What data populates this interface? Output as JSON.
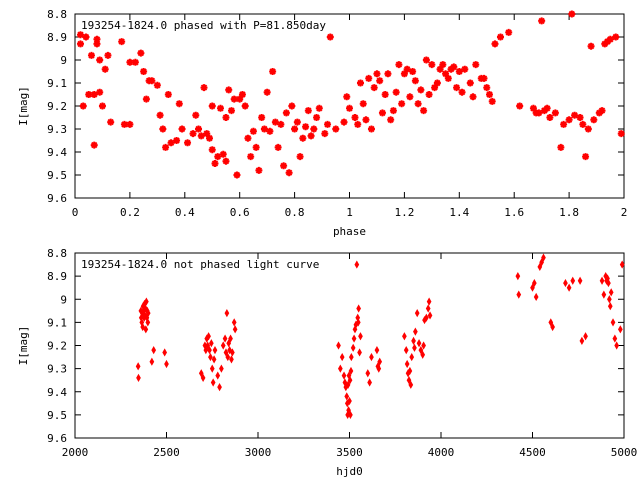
{
  "chart_data": [
    {
      "type": "scatter",
      "title": "193254-1824.0 phased with P=81.850day",
      "xlabel": "phase",
      "ylabel": "I[mag]",
      "xlim": [
        0,
        2
      ],
      "ylim": [
        8.8,
        9.6
      ],
      "y_inverted": true,
      "x_ticks": [
        "0",
        "0.2",
        "0.4",
        "0.6",
        "0.8",
        "1",
        "1.2",
        "1.4",
        "1.6",
        "1.8",
        "2"
      ],
      "y_ticks": [
        "8.8",
        "8.9",
        "9",
        "9.1",
        "9.2",
        "9.3",
        "9.4",
        "9.5",
        "9.6"
      ],
      "marker_color": "#ff0000",
      "grid": false,
      "points": [
        [
          0.02,
          8.89
        ],
        [
          0.02,
          8.93
        ],
        [
          0.03,
          9.2
        ],
        [
          0.04,
          8.9
        ],
        [
          0.05,
          9.15
        ],
        [
          0.06,
          8.98
        ],
        [
          0.07,
          9.15
        ],
        [
          0.07,
          9.37
        ],
        [
          0.08,
          8.93
        ],
        [
          0.08,
          8.91
        ],
        [
          0.09,
          9.0
        ],
        [
          0.09,
          9.14
        ],
        [
          0.1,
          9.2
        ],
        [
          0.11,
          9.04
        ],
        [
          0.12,
          8.98
        ],
        [
          0.13,
          9.27
        ],
        [
          0.17,
          8.92
        ],
        [
          0.18,
          9.28
        ],
        [
          0.2,
          9.28
        ],
        [
          0.2,
          9.01
        ],
        [
          0.22,
          9.01
        ],
        [
          0.24,
          8.97
        ],
        [
          0.25,
          9.05
        ],
        [
          0.26,
          9.17
        ],
        [
          0.27,
          9.09
        ],
        [
          0.28,
          9.09
        ],
        [
          0.3,
          9.11
        ],
        [
          0.31,
          9.24
        ],
        [
          0.32,
          9.3
        ],
        [
          0.33,
          9.38
        ],
        [
          0.34,
          9.15
        ],
        [
          0.35,
          9.36
        ],
        [
          0.37,
          9.35
        ],
        [
          0.38,
          9.19
        ],
        [
          0.39,
          9.3
        ],
        [
          0.41,
          9.36
        ],
        [
          0.43,
          9.32
        ],
        [
          0.44,
          9.24
        ],
        [
          0.45,
          9.3
        ],
        [
          0.46,
          9.33
        ],
        [
          0.47,
          9.12
        ],
        [
          0.48,
          9.32
        ],
        [
          0.49,
          9.34
        ],
        [
          0.5,
          9.39
        ],
        [
          0.5,
          9.2
        ],
        [
          0.51,
          9.45
        ],
        [
          0.52,
          9.42
        ],
        [
          0.53,
          9.21
        ],
        [
          0.54,
          9.41
        ],
        [
          0.55,
          9.44
        ],
        [
          0.55,
          9.25
        ],
        [
          0.56,
          9.13
        ],
        [
          0.57,
          9.22
        ],
        [
          0.58,
          9.17
        ],
        [
          0.59,
          9.5
        ],
        [
          0.6,
          9.17
        ],
        [
          0.61,
          9.15
        ],
        [
          0.62,
          9.2
        ],
        [
          0.63,
          9.34
        ],
        [
          0.64,
          9.42
        ],
        [
          0.65,
          9.31
        ],
        [
          0.66,
          9.38
        ],
        [
          0.67,
          9.48
        ],
        [
          0.68,
          9.25
        ],
        [
          0.69,
          9.3
        ],
        [
          0.7,
          9.14
        ],
        [
          0.71,
          9.31
        ],
        [
          0.72,
          9.05
        ],
        [
          0.73,
          9.27
        ],
        [
          0.74,
          9.38
        ],
        [
          0.75,
          9.28
        ],
        [
          0.76,
          9.46
        ],
        [
          0.77,
          9.23
        ],
        [
          0.78,
          9.49
        ],
        [
          0.79,
          9.2
        ],
        [
          0.8,
          9.3
        ],
        [
          0.81,
          9.27
        ],
        [
          0.82,
          9.42
        ],
        [
          0.83,
          9.34
        ],
        [
          0.84,
          9.29
        ],
        [
          0.85,
          9.22
        ],
        [
          0.86,
          9.33
        ],
        [
          0.87,
          9.3
        ],
        [
          0.88,
          9.25
        ],
        [
          0.89,
          9.21
        ],
        [
          0.91,
          9.32
        ],
        [
          0.92,
          9.28
        ],
        [
          0.93,
          8.9
        ],
        [
          0.95,
          9.3
        ],
        [
          0.98,
          9.27
        ],
        [
          0.99,
          9.16
        ],
        [
          1.0,
          9.21
        ],
        [
          1.02,
          9.25
        ],
        [
          1.03,
          9.28
        ],
        [
          1.04,
          9.1
        ],
        [
          1.05,
          9.19
        ],
        [
          1.06,
          9.26
        ],
        [
          1.07,
          9.08
        ],
        [
          1.08,
          9.3
        ],
        [
          1.09,
          9.12
        ],
        [
          1.1,
          9.06
        ],
        [
          1.11,
          9.09
        ],
        [
          1.12,
          9.23
        ],
        [
          1.13,
          9.15
        ],
        [
          1.14,
          9.06
        ],
        [
          1.15,
          9.26
        ],
        [
          1.16,
          9.22
        ],
        [
          1.17,
          9.14
        ],
        [
          1.18,
          9.02
        ],
        [
          1.19,
          9.19
        ],
        [
          1.2,
          9.06
        ],
        [
          1.21,
          9.04
        ],
        [
          1.22,
          9.16
        ],
        [
          1.23,
          9.05
        ],
        [
          1.24,
          9.09
        ],
        [
          1.25,
          9.19
        ],
        [
          1.26,
          9.13
        ],
        [
          1.27,
          9.22
        ],
        [
          1.28,
          9.0
        ],
        [
          1.29,
          9.15
        ],
        [
          1.3,
          9.02
        ],
        [
          1.31,
          9.12
        ],
        [
          1.32,
          9.1
        ],
        [
          1.33,
          9.04
        ],
        [
          1.34,
          9.02
        ],
        [
          1.35,
          9.06
        ],
        [
          1.36,
          9.08
        ],
        [
          1.37,
          9.04
        ],
        [
          1.38,
          9.03
        ],
        [
          1.39,
          9.12
        ],
        [
          1.4,
          9.05
        ],
        [
          1.41,
          9.14
        ],
        [
          1.42,
          9.04
        ],
        [
          1.44,
          9.1
        ],
        [
          1.45,
          9.16
        ],
        [
          1.46,
          9.02
        ],
        [
          1.48,
          9.08
        ],
        [
          1.49,
          9.08
        ],
        [
          1.5,
          9.12
        ],
        [
          1.51,
          9.15
        ],
        [
          1.52,
          9.18
        ],
        [
          1.53,
          8.93
        ],
        [
          1.55,
          8.9
        ],
        [
          1.58,
          8.88
        ],
        [
          1.62,
          9.2
        ],
        [
          1.67,
          9.21
        ],
        [
          1.68,
          9.23
        ],
        [
          1.69,
          9.23
        ],
        [
          1.7,
          8.83
        ],
        [
          1.71,
          9.22
        ],
        [
          1.72,
          9.21
        ],
        [
          1.73,
          9.25
        ],
        [
          1.75,
          9.23
        ],
        [
          1.77,
          9.38
        ],
        [
          1.78,
          9.28
        ],
        [
          1.8,
          9.26
        ],
        [
          1.81,
          8.8
        ],
        [
          1.82,
          9.24
        ],
        [
          1.84,
          9.25
        ],
        [
          1.85,
          9.28
        ],
        [
          1.86,
          9.42
        ],
        [
          1.87,
          9.3
        ],
        [
          1.88,
          8.94
        ],
        [
          1.89,
          9.26
        ],
        [
          1.91,
          9.23
        ],
        [
          1.92,
          9.22
        ],
        [
          1.93,
          8.93
        ],
        [
          1.94,
          8.92
        ],
        [
          1.95,
          8.91
        ],
        [
          1.97,
          8.9
        ],
        [
          1.99,
          9.32
        ]
      ]
    },
    {
      "type": "scatter",
      "title": "193254-1824.0 not phased light curve",
      "xlabel": "hjd0",
      "ylabel": "I[mag]",
      "xlim": [
        2000,
        5000
      ],
      "ylim": [
        8.8,
        9.6
      ],
      "y_inverted": true,
      "x_ticks": [
        "2000",
        "2500",
        "3000",
        "3500",
        "4000",
        "4500",
        "5000"
      ],
      "y_ticks": [
        "8.8",
        "8.9",
        "9",
        "9.1",
        "9.2",
        "9.3",
        "9.4",
        "9.5",
        "9.6"
      ],
      "marker_color": "#ff0000",
      "grid": false,
      "points": [
        [
          2345,
          9.29
        ],
        [
          2347,
          9.34
        ],
        [
          2360,
          9.05
        ],
        [
          2362,
          9.08
        ],
        [
          2365,
          9.1
        ],
        [
          2368,
          9.06
        ],
        [
          2370,
          9.12
        ],
        [
          2372,
          9.03
        ],
        [
          2375,
          9.05
        ],
        [
          2378,
          9.08
        ],
        [
          2380,
          9.02
        ],
        [
          2382,
          9.07
        ],
        [
          2385,
          9.04
        ],
        [
          2387,
          9.13
        ],
        [
          2390,
          9.01
        ],
        [
          2393,
          9.08
        ],
        [
          2395,
          9.05
        ],
        [
          2398,
          9.1
        ],
        [
          2400,
          9.06
        ],
        [
          2420,
          9.27
        ],
        [
          2430,
          9.22
        ],
        [
          2490,
          9.23
        ],
        [
          2500,
          9.28
        ],
        [
          2690,
          9.32
        ],
        [
          2700,
          9.34
        ],
        [
          2710,
          9.2
        ],
        [
          2715,
          9.22
        ],
        [
          2720,
          9.17
        ],
        [
          2725,
          9.2
        ],
        [
          2730,
          9.16
        ],
        [
          2735,
          9.22
        ],
        [
          2740,
          9.25
        ],
        [
          2745,
          9.19
        ],
        [
          2750,
          9.3
        ],
        [
          2755,
          9.36
        ],
        [
          2760,
          9.26
        ],
        [
          2765,
          9.22
        ],
        [
          2780,
          9.33
        ],
        [
          2790,
          9.38
        ],
        [
          2800,
          9.3
        ],
        [
          2810,
          9.2
        ],
        [
          2820,
          9.17
        ],
        [
          2825,
          9.23
        ],
        [
          2830,
          9.06
        ],
        [
          2835,
          9.25
        ],
        [
          2840,
          9.19
        ],
        [
          2845,
          9.22
        ],
        [
          2850,
          9.17
        ],
        [
          2855,
          9.26
        ],
        [
          2860,
          9.23
        ],
        [
          2870,
          9.1
        ],
        [
          2875,
          9.13
        ],
        [
          3440,
          9.2
        ],
        [
          3450,
          9.3
        ],
        [
          3460,
          9.25
        ],
        [
          3470,
          9.33
        ],
        [
          3475,
          9.36
        ],
        [
          3480,
          9.38
        ],
        [
          3485,
          9.42
        ],
        [
          3488,
          9.45
        ],
        [
          3490,
          9.5
        ],
        [
          3492,
          9.37
        ],
        [
          3495,
          9.48
        ],
        [
          3497,
          9.33
        ],
        [
          3500,
          9.44
        ],
        [
          3503,
          9.35
        ],
        [
          3505,
          9.5
        ],
        [
          3508,
          9.31
        ],
        [
          3510,
          9.25
        ],
        [
          3520,
          9.21
        ],
        [
          3525,
          9.17
        ],
        [
          3530,
          9.13
        ],
        [
          3535,
          9.11
        ],
        [
          3540,
          8.85
        ],
        [
          3545,
          9.08
        ],
        [
          3548,
          9.1
        ],
        [
          3550,
          9.04
        ],
        [
          3555,
          9.23
        ],
        [
          3560,
          9.16
        ],
        [
          3600,
          9.32
        ],
        [
          3610,
          9.36
        ],
        [
          3620,
          9.25
        ],
        [
          3650,
          9.22
        ],
        [
          3655,
          9.29
        ],
        [
          3660,
          9.3
        ],
        [
          3665,
          9.27
        ],
        [
          3800,
          9.16
        ],
        [
          3810,
          9.22
        ],
        [
          3815,
          9.28
        ],
        [
          3820,
          9.32
        ],
        [
          3825,
          9.35
        ],
        [
          3830,
          9.31
        ],
        [
          3835,
          9.37
        ],
        [
          3840,
          9.25
        ],
        [
          3850,
          9.18
        ],
        [
          3855,
          9.21
        ],
        [
          3860,
          9.14
        ],
        [
          3870,
          9.06
        ],
        [
          3880,
          9.19
        ],
        [
          3890,
          9.22
        ],
        [
          3900,
          9.24
        ],
        [
          3905,
          9.2
        ],
        [
          3910,
          9.09
        ],
        [
          3920,
          9.08
        ],
        [
          3930,
          9.04
        ],
        [
          3935,
          9.01
        ],
        [
          3940,
          9.07
        ],
        [
          4420,
          8.9
        ],
        [
          4425,
          8.98
        ],
        [
          4500,
          8.95
        ],
        [
          4510,
          8.93
        ],
        [
          4520,
          8.99
        ],
        [
          4540,
          8.86
        ],
        [
          4550,
          8.84
        ],
        [
          4560,
          8.82
        ],
        [
          4600,
          9.1
        ],
        [
          4610,
          9.12
        ],
        [
          4680,
          8.93
        ],
        [
          4700,
          8.95
        ],
        [
          4720,
          8.92
        ],
        [
          4760,
          8.92
        ],
        [
          4770,
          9.18
        ],
        [
          4790,
          9.16
        ],
        [
          4880,
          8.92
        ],
        [
          4890,
          8.98
        ],
        [
          4900,
          8.9
        ],
        [
          4905,
          8.92
        ],
        [
          4910,
          8.91
        ],
        [
          4915,
          8.93
        ],
        [
          4920,
          9.0
        ],
        [
          4925,
          9.03
        ],
        [
          4930,
          8.97
        ],
        [
          4940,
          9.1
        ],
        [
          4950,
          9.17
        ],
        [
          4960,
          9.2
        ],
        [
          4980,
          9.13
        ],
        [
          4990,
          8.85
        ]
      ]
    }
  ]
}
